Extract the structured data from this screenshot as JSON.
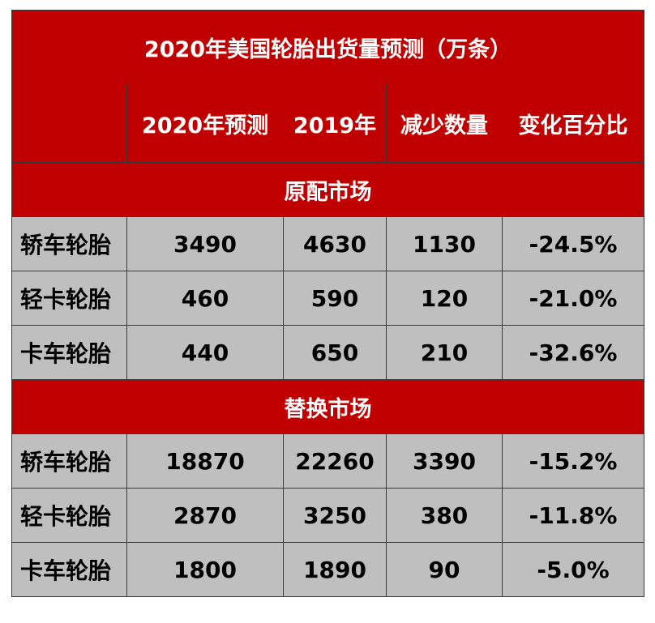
{
  "title": "2020年美国轮胎出货量预测（万条）",
  "colors": {
    "header_bg": "#c00000",
    "header_text": "#ffffff",
    "cell_bg": "#bfbfbf",
    "cell_text": "#000000",
    "border": "#3a3a3a"
  },
  "columns": [
    "",
    "2020年预测",
    "2019年",
    "减少数量",
    "变化百分比"
  ],
  "sections": [
    {
      "name": "原配市场",
      "rows": [
        {
          "type": "轿车轮胎",
          "f2020": "3490",
          "y2019": "4630",
          "decrease": "1130",
          "change": "-24.5%"
        },
        {
          "type": "轻卡轮胎",
          "f2020": "460",
          "y2019": "590",
          "decrease": "120",
          "change": "-21.0%"
        },
        {
          "type": "卡车轮胎",
          "f2020": "440",
          "y2019": "650",
          "decrease": "210",
          "change": "-32.6%"
        }
      ]
    },
    {
      "name": "替换市场",
      "rows": [
        {
          "type": "轿车轮胎",
          "f2020": "18870",
          "y2019": "22260",
          "decrease": "3390",
          "change": "-15.2%"
        },
        {
          "type": "轻卡轮胎",
          "f2020": "2870",
          "y2019": "3250",
          "decrease": "380",
          "change": "-11.8%"
        },
        {
          "type": "卡车轮胎",
          "f2020": "1800",
          "y2019": "1890",
          "decrease": "90",
          "change": "-5.0%"
        }
      ]
    }
  ]
}
